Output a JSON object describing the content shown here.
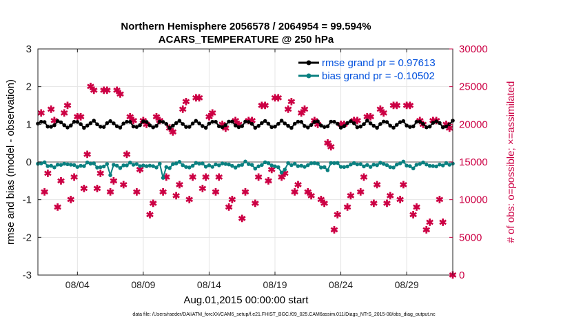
{
  "chart_data": {
    "type": "line",
    "title": [
      "Northern Hemisphere 2056578 / 2064954 = 99.594%",
      "ACARS_TEMPERATURE @ 250 hPa"
    ],
    "xlabel": "Aug.01,2015 00:00:00 start",
    "ylabel_left": "rmse and bias (model - observation)",
    "ylabel_right": "# of obs: o=possible; ×=assimilated",
    "footnote": "data file: /Users/raeder/DAI/ATM_forcXX/CAM6_setup/f.e21.FHIST_BGC.f09_025.CAM6assim.011/Diags_NTrS_2015-08/obs_diag_output.nc",
    "x_range_days": [
      0,
      31.5
    ],
    "ylim_left": [
      -3,
      3
    ],
    "ylim_right": [
      0,
      30000
    ],
    "xticks": [
      {
        "day": 3,
        "label": "08/04"
      },
      {
        "day": 8,
        "label": "08/09"
      },
      {
        "day": 13,
        "label": "08/14"
      },
      {
        "day": 18,
        "label": "08/19"
      },
      {
        "day": 23,
        "label": "08/24"
      },
      {
        "day": 28,
        "label": "08/29"
      }
    ],
    "yticks_left": [
      "3",
      "2",
      "1",
      "0",
      "-1",
      "-2",
      "-3"
    ],
    "yticks_left_values": [
      3,
      2,
      1,
      0,
      -1,
      -2,
      -3
    ],
    "yticks_right": [
      "30000",
      "25000",
      "20000",
      "15000",
      "10000",
      "5000",
      "0"
    ],
    "yticks_right_values": [
      30000,
      25000,
      20000,
      15000,
      10000,
      5000,
      0
    ],
    "grid": true,
    "legend_position": "top-right",
    "step_hours": 6,
    "series": [
      {
        "name": "rmse",
        "legend": "rmse grand pr = 0.97613",
        "color": "#000000",
        "base": 1.0,
        "amp": 0.07,
        "period": 1.3,
        "jitter": 0.03
      },
      {
        "name": "bias",
        "legend": "bias grand pr = -0.10502",
        "color": "#0a8080",
        "base": -0.08,
        "amp": 0.05,
        "period": 1.7,
        "jitter": 0.05,
        "dips": [
          {
            "day": 5.5,
            "value": -0.35
          },
          {
            "day": 8.9,
            "value": -0.2
          },
          {
            "day": 9.5,
            "value": -0.42
          },
          {
            "day": 18.6,
            "value": -0.4
          },
          {
            "day": 22.0,
            "value": -0.22
          }
        ]
      }
    ],
    "obs_counts_possible": [
      {
        "day": 0.25,
        "value": 21500
      },
      {
        "day": 0.5,
        "value": 11000
      },
      {
        "day": 0.75,
        "value": 13500
      },
      {
        "day": 1.0,
        "value": 22000
      },
      {
        "day": 1.25,
        "value": 20500
      },
      {
        "day": 1.5,
        "value": 9000
      },
      {
        "day": 1.75,
        "value": 12500
      },
      {
        "day": 2.0,
        "value": 21500
      },
      {
        "day": 2.25,
        "value": 22500
      },
      {
        "day": 2.5,
        "value": 10000
      },
      {
        "day": 2.75,
        "value": 13000
      },
      {
        "day": 3.0,
        "value": 21000
      },
      {
        "day": 3.25,
        "value": 21000
      },
      {
        "day": 3.5,
        "value": 11500
      },
      {
        "day": 3.75,
        "value": 16000
      },
      {
        "day": 4.0,
        "value": 25000
      },
      {
        "day": 4.25,
        "value": 24500
      },
      {
        "day": 4.5,
        "value": 11500
      },
      {
        "day": 4.75,
        "value": 13500
      },
      {
        "day": 5.0,
        "value": 24500
      },
      {
        "day": 5.25,
        "value": 24500
      },
      {
        "day": 5.5,
        "value": 11000
      },
      {
        "day": 5.75,
        "value": 12500
      },
      {
        "day": 6.0,
        "value": 24500
      },
      {
        "day": 6.25,
        "value": 24000
      },
      {
        "day": 6.5,
        "value": 12000
      },
      {
        "day": 6.75,
        "value": 16000
      },
      {
        "day": 7.0,
        "value": 21000
      },
      {
        "day": 7.25,
        "value": 20500
      },
      {
        "day": 7.5,
        "value": 11000
      },
      {
        "day": 7.75,
        "value": 14000
      },
      {
        "day": 8.0,
        "value": 20500
      },
      {
        "day": 8.25,
        "value": 20000
      },
      {
        "day": 8.5,
        "value": 8000
      },
      {
        "day": 8.75,
        "value": 9500
      },
      {
        "day": 9.0,
        "value": 21000
      },
      {
        "day": 9.25,
        "value": 20500
      },
      {
        "day": 9.5,
        "value": 11000
      },
      {
        "day": 9.75,
        "value": 13000
      },
      {
        "day": 10.0,
        "value": 19500
      },
      {
        "day": 10.25,
        "value": 19000
      },
      {
        "day": 10.5,
        "value": 10500
      },
      {
        "day": 10.75,
        "value": 12000
      },
      {
        "day": 11.0,
        "value": 22000
      },
      {
        "day": 11.25,
        "value": 23000
      },
      {
        "day": 11.5,
        "value": 10000
      },
      {
        "day": 11.75,
        "value": 13000
      },
      {
        "day": 12.0,
        "value": 23500
      },
      {
        "day": 12.25,
        "value": 23500
      },
      {
        "day": 12.5,
        "value": 11500
      },
      {
        "day": 12.75,
        "value": 13000
      },
      {
        "day": 13.0,
        "value": 21000
      },
      {
        "day": 13.25,
        "value": 21500
      },
      {
        "day": 13.5,
        "value": 11000
      },
      {
        "day": 13.75,
        "value": 13000
      },
      {
        "day": 14.0,
        "value": 20000
      },
      {
        "day": 14.25,
        "value": 19500
      },
      {
        "day": 14.5,
        "value": 9000
      },
      {
        "day": 14.75,
        "value": 10000
      },
      {
        "day": 15.0,
        "value": 20500
      },
      {
        "day": 15.25,
        "value": 20000
      },
      {
        "day": 15.5,
        "value": 7500
      },
      {
        "day": 15.75,
        "value": 11000
      },
      {
        "day": 16.0,
        "value": 20500
      },
      {
        "day": 16.25,
        "value": 20500
      },
      {
        "day": 16.5,
        "value": 9500
      },
      {
        "day": 16.75,
        "value": 13000
      },
      {
        "day": 17.0,
        "value": 22500
      },
      {
        "day": 17.25,
        "value": 22500
      },
      {
        "day": 17.5,
        "value": 12500
      },
      {
        "day": 17.75,
        "value": 14000
      },
      {
        "day": 18.0,
        "value": 23500
      },
      {
        "day": 18.25,
        "value": 23500
      },
      {
        "day": 18.5,
        "value": 13000
      },
      {
        "day": 18.75,
        "value": 13500
      },
      {
        "day": 19.0,
        "value": 22000
      },
      {
        "day": 19.25,
        "value": 23000
      },
      {
        "day": 19.5,
        "value": 11000
      },
      {
        "day": 19.75,
        "value": 12000
      },
      {
        "day": 20.0,
        "value": 21500
      },
      {
        "day": 20.25,
        "value": 22000
      },
      {
        "day": 20.5,
        "value": 11000
      },
      {
        "day": 20.75,
        "value": 10500
      },
      {
        "day": 21.0,
        "value": 20500
      },
      {
        "day": 21.25,
        "value": 20000
      },
      {
        "day": 21.5,
        "value": 10000
      },
      {
        "day": 21.75,
        "value": 9500
      },
      {
        "day": 22.0,
        "value": 17500
      },
      {
        "day": 22.25,
        "value": 17000
      },
      {
        "day": 22.5,
        "value": 6000
      },
      {
        "day": 22.75,
        "value": 8000
      },
      {
        "day": 23.0,
        "value": 20000
      },
      {
        "day": 23.25,
        "value": 20000
      },
      {
        "day": 23.5,
        "value": 9000
      },
      {
        "day": 23.75,
        "value": 10500
      },
      {
        "day": 24.0,
        "value": 20500
      },
      {
        "day": 24.25,
        "value": 20500
      },
      {
        "day": 24.5,
        "value": 11000
      },
      {
        "day": 24.75,
        "value": 13000
      },
      {
        "day": 25.0,
        "value": 21000
      },
      {
        "day": 25.25,
        "value": 21000
      },
      {
        "day": 25.5,
        "value": 9500
      },
      {
        "day": 25.75,
        "value": 12000
      },
      {
        "day": 26.0,
        "value": 22000
      },
      {
        "day": 26.25,
        "value": 21500
      },
      {
        "day": 26.5,
        "value": 9500
      },
      {
        "day": 26.75,
        "value": 10500
      },
      {
        "day": 27.0,
        "value": 22500
      },
      {
        "day": 27.25,
        "value": 22500
      },
      {
        "day": 27.5,
        "value": 10000
      },
      {
        "day": 27.75,
        "value": 12000
      },
      {
        "day": 28.0,
        "value": 22500
      },
      {
        "day": 28.25,
        "value": 22500
      },
      {
        "day": 28.5,
        "value": 8000
      },
      {
        "day": 28.75,
        "value": 9000
      },
      {
        "day": 29.0,
        "value": 20500
      },
      {
        "day": 29.25,
        "value": 20000
      },
      {
        "day": 29.5,
        "value": 6000
      },
      {
        "day": 29.75,
        "value": 7000
      },
      {
        "day": 30.0,
        "value": 20500
      },
      {
        "day": 30.25,
        "value": 20500
      },
      {
        "day": 30.5,
        "value": 10000
      },
      {
        "day": 30.75,
        "value": 7000
      },
      {
        "day": 31.0,
        "value": 20000
      },
      {
        "day": 31.25,
        "value": 19500
      },
      {
        "day": 31.5,
        "value": 0
      }
    ]
  }
}
